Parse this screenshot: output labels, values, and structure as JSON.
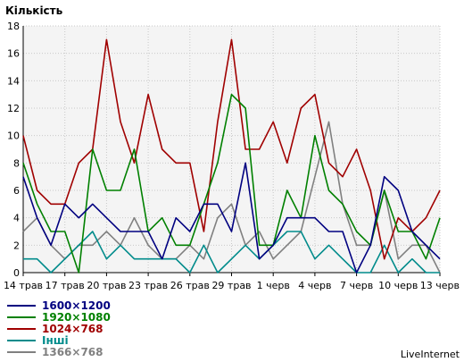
{
  "chart_data": {
    "type": "line",
    "title": "Кількість",
    "ylim": [
      0,
      18
    ],
    "y_ticks": [
      0,
      2,
      4,
      6,
      8,
      10,
      12,
      14,
      16,
      18
    ],
    "grid": true,
    "x_tick_labels": [
      "14 трав",
      "17 трав",
      "20 трав",
      "23 трав",
      "26 трав",
      "29 трав",
      "1 черв",
      "4 черв",
      "7 черв",
      "10 черв",
      "13 черв"
    ],
    "x_tick_every": 3,
    "legend_position": "bottom-left",
    "series": [
      {
        "name": "1600×1200",
        "color": "#000080",
        "values": [
          7,
          4,
          2,
          5,
          4,
          5,
          4,
          3,
          3,
          3,
          1,
          4,
          3,
          5,
          5,
          3,
          8,
          1,
          2,
          4,
          4,
          4,
          3,
          3,
          0,
          2,
          7,
          6,
          3,
          2,
          1
        ]
      },
      {
        "name": "1920×1080",
        "color": "#008000",
        "values": [
          8,
          5,
          3,
          3,
          0,
          9,
          6,
          6,
          9,
          3,
          4,
          2,
          2,
          5,
          8,
          13,
          12,
          2,
          2,
          6,
          4,
          10,
          6,
          5,
          3,
          2,
          6,
          3,
          3,
          1,
          4
        ]
      },
      {
        "name": "1024×768",
        "color": "#a00000",
        "values": [
          10,
          6,
          5,
          5,
          8,
          9,
          17,
          11,
          8,
          13,
          9,
          8,
          8,
          3,
          11,
          17,
          9,
          9,
          11,
          8,
          12,
          13,
          8,
          7,
          9,
          6,
          1,
          4,
          3,
          4,
          6
        ]
      },
      {
        "name": "Інші",
        "color": "#008b8b",
        "values": [
          1,
          1,
          0,
          1,
          2,
          3,
          1,
          2,
          1,
          1,
          1,
          1,
          0,
          2,
          0,
          1,
          2,
          1,
          2,
          3,
          3,
          1,
          2,
          1,
          0,
          0,
          2,
          0,
          1,
          0,
          0
        ]
      },
      {
        "name": "1366×768",
        "color": "#808080",
        "values": [
          3,
          4,
          2,
          1,
          2,
          2,
          3,
          2,
          4,
          2,
          1,
          1,
          2,
          1,
          4,
          5,
          2,
          3,
          1,
          2,
          3,
          7,
          11,
          5,
          2,
          2,
          6,
          1,
          2,
          2,
          0
        ]
      }
    ]
  },
  "brand": "LiveInternet"
}
